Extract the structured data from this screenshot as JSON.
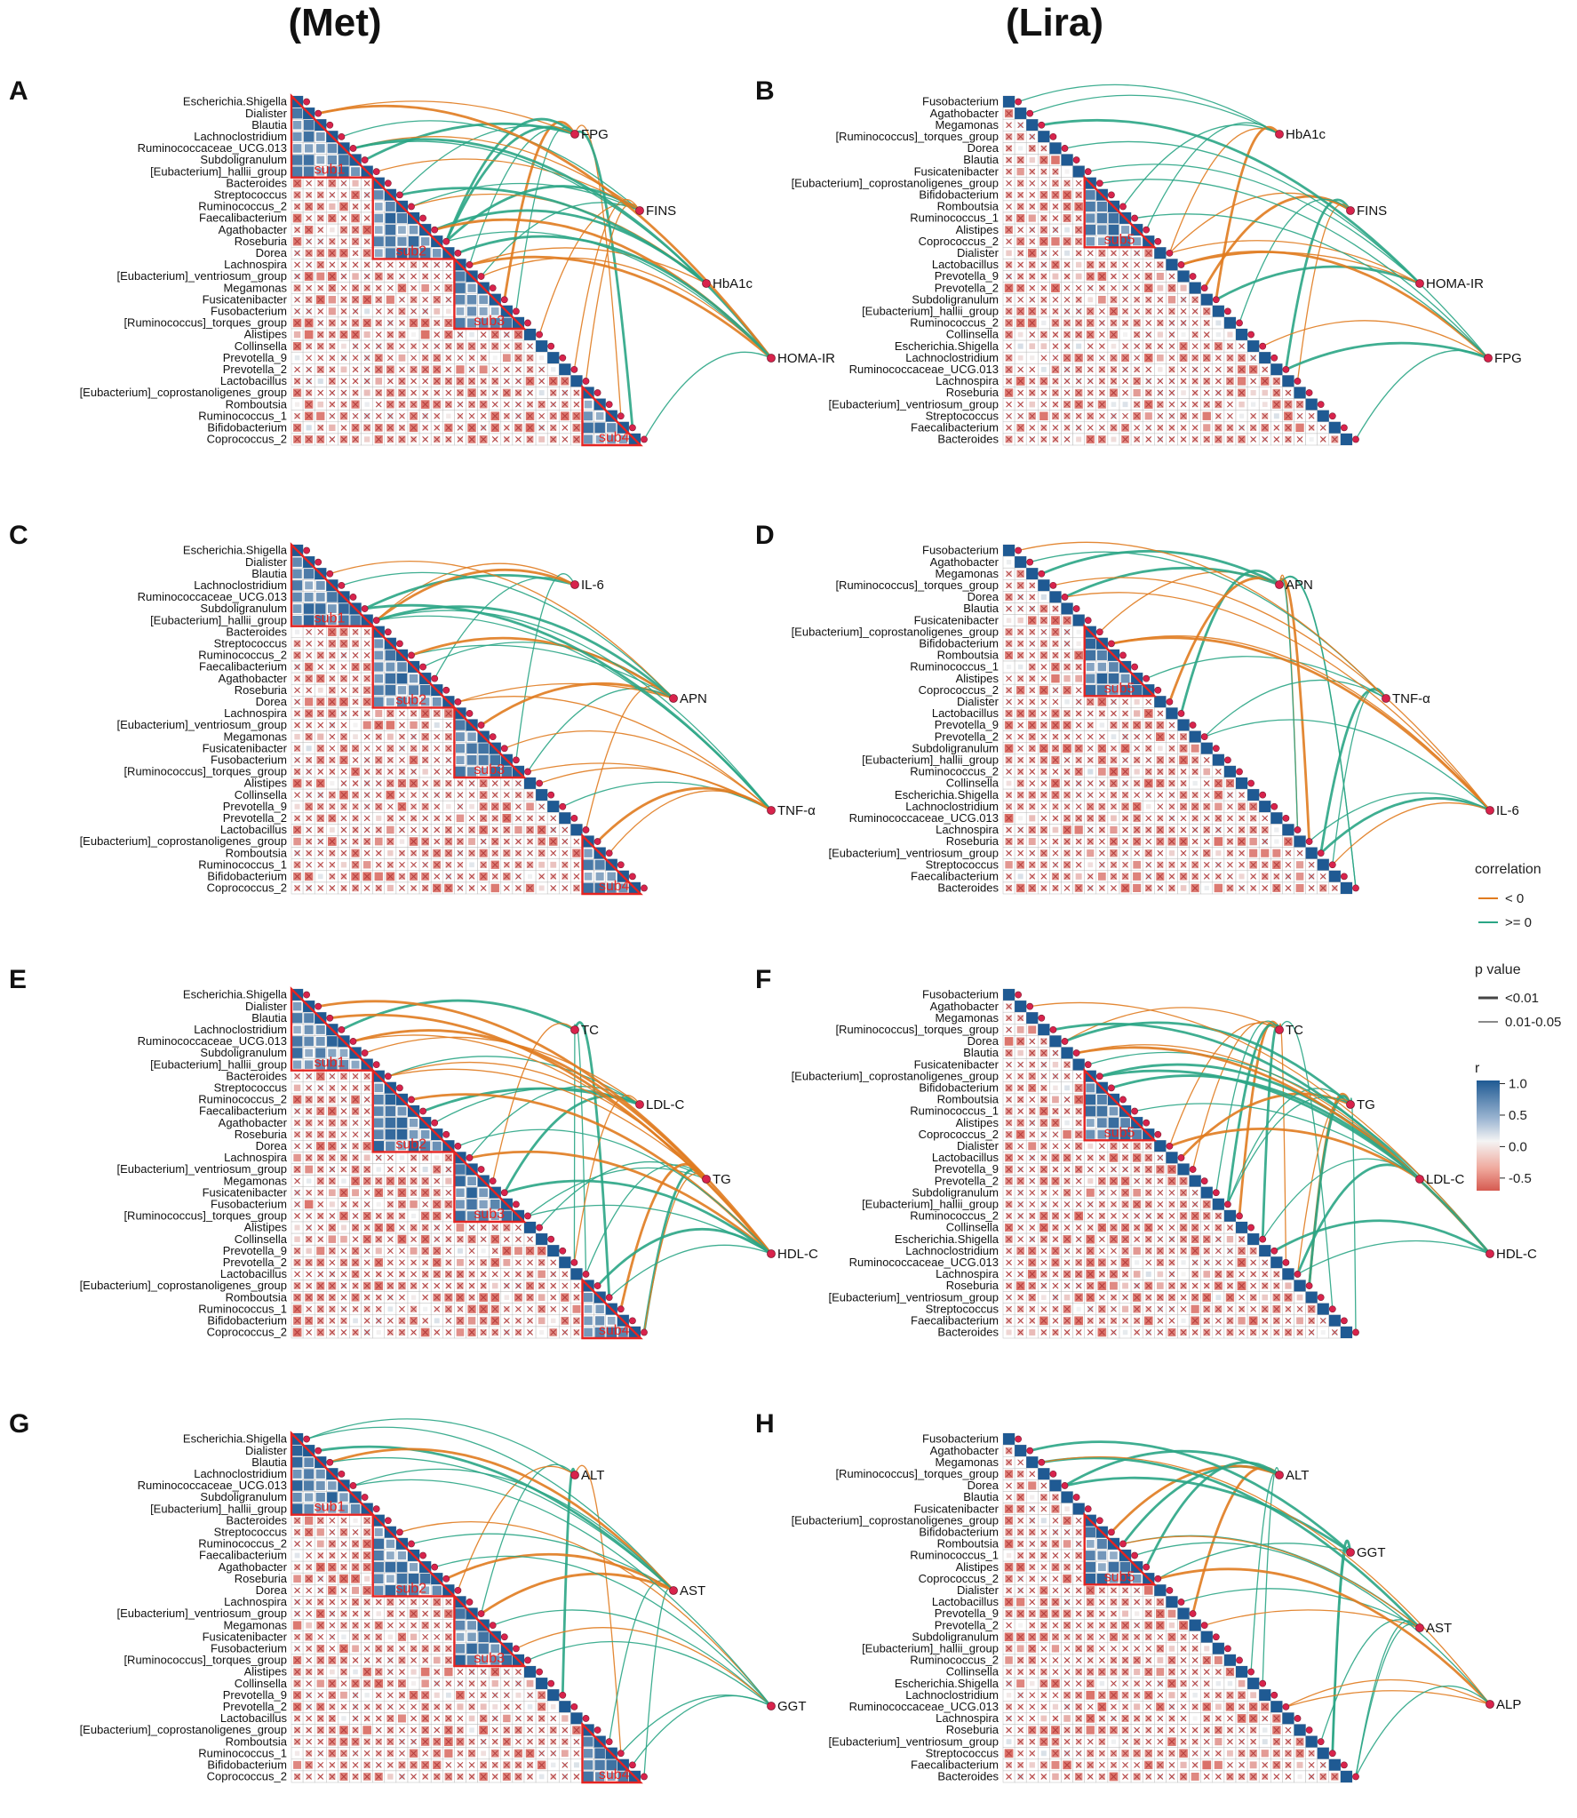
{
  "column_titles": [
    "(Met)",
    "(Lira)"
  ],
  "genera": {
    "met": [
      "Escherichia.Shigella",
      "Dialister",
      "Blautia",
      "Lachnoclostridium",
      "Ruminococcaceae_UCG.013",
      "Subdoligranulum",
      "[Eubacterium]_hallii_group",
      "Bacteroides",
      "Streptococcus",
      "Ruminococcus_2",
      "Faecalibacterium",
      "Agathobacter",
      "Roseburia",
      "Dorea",
      "Lachnospira",
      "[Eubacterium]_ventriosum_group",
      "Megamonas",
      "Fusicatenibacter",
      "Fusobacterium",
      "[Ruminococcus]_torques_group",
      "Alistipes",
      "Collinsella",
      "Prevotella_9",
      "Prevotella_2",
      "Lactobacillus",
      "[Eubacterium]_coprostanoligenes_group",
      "Romboutsia",
      "Ruminococcus_1",
      "Bifidobacterium",
      "Coprococcus_2"
    ],
    "lira": [
      "Fusobacterium",
      "Agathobacter",
      "Megamonas",
      "[Ruminococcus]_torques_group",
      "Dorea",
      "Blautia",
      "Fusicatenibacter",
      "[Eubacterium]_coprostanoligenes_group",
      "Bifidobacterium",
      "Romboutsia",
      "Ruminococcus_1",
      "Alistipes",
      "Coprococcus_2",
      "Dialister",
      "Lactobacillus",
      "Prevotella_9",
      "Prevotella_2",
      "Subdoligranulum",
      "[Eubacterium]_hallii_group",
      "Ruminococcus_2",
      "Collinsella",
      "Escherichia.Shigella",
      "Lachnoclostridium",
      "Ruminococcaceae_UCG.013",
      "Lachnospira",
      "Roseburia",
      "[Eubacterium]_ventriosum_group",
      "Streptococcus",
      "Faecalibacterium",
      "Bacteroides"
    ]
  },
  "modules": {
    "met": [
      {
        "label": "sub1",
        "start": 0,
        "end": 6
      },
      {
        "label": "sub2",
        "start": 7,
        "end": 13
      },
      {
        "label": "sub3",
        "start": 14,
        "end": 19
      },
      {
        "label": "sub4",
        "start": 25,
        "end": 29
      }
    ],
    "lira": [
      {
        "label": "sub5",
        "start": 7,
        "end": 12
      }
    ]
  },
  "panels": [
    {
      "letter": "A",
      "group": "met",
      "variables": [
        "FPG",
        "FINS",
        "HbA1c",
        "HOMA-IR"
      ]
    },
    {
      "letter": "B",
      "group": "lira",
      "variables": [
        "HbA1c",
        "FINS",
        "HOMA-IR",
        "FPG"
      ]
    },
    {
      "letter": "C",
      "group": "met",
      "variables": [
        "IL-6",
        "APN",
        "TNF-α"
      ]
    },
    {
      "letter": "D",
      "group": "lira",
      "variables": [
        "APN",
        "TNF-α",
        "IL-6"
      ]
    },
    {
      "letter": "E",
      "group": "met",
      "variables": [
        "TC",
        "LDL-C",
        "TG",
        "HDL-C"
      ]
    },
    {
      "letter": "F",
      "group": "lira",
      "variables": [
        "TC",
        "TG",
        "LDL-C",
        "HDL-C"
      ]
    },
    {
      "letter": "G",
      "group": "met",
      "variables": [
        "ALT",
        "AST",
        "GGT"
      ]
    },
    {
      "letter": "H",
      "group": "lira",
      "variables": [
        "ALT",
        "GGT",
        "AST",
        "ALP"
      ]
    }
  ],
  "legend": {
    "correlation_title": "correlation",
    "correlation_items": [
      {
        "label": "< 0",
        "color": "#e07b1f"
      },
      {
        "label": ">= 0",
        "color": "#2aa585"
      }
    ],
    "pvalue_title": "p value",
    "pvalue_items": [
      "<0.01",
      "0.01-0.05"
    ],
    "r_title": "r",
    "r_ticks": [
      "1.0",
      "0.5",
      "0.0",
      "-0.5"
    ],
    "r_values": [
      1.0,
      0.5,
      0.0,
      -0.5
    ],
    "r_range": [
      -0.7,
      1.05
    ]
  },
  "colors": {
    "positive": "#2aa585",
    "negative": "#e07b1f",
    "high": "#1f5a93",
    "mid": "#f4f4f4",
    "low": "#d65a50",
    "module": "#e52421",
    "node": "#d8234c"
  },
  "chart_data": {
    "type": "heatmap",
    "description": "Mantel-test style correlograms: lower-triangle Spearman correlation heatmap among 30 genera with links to host clinical variables",
    "x": "genera",
    "y": "genera",
    "value_label": "r",
    "value_range": [
      -0.7,
      1.0
    ],
    "link_encoding": {
      "color": "correlation sign",
      "width": "p value"
    }
  }
}
